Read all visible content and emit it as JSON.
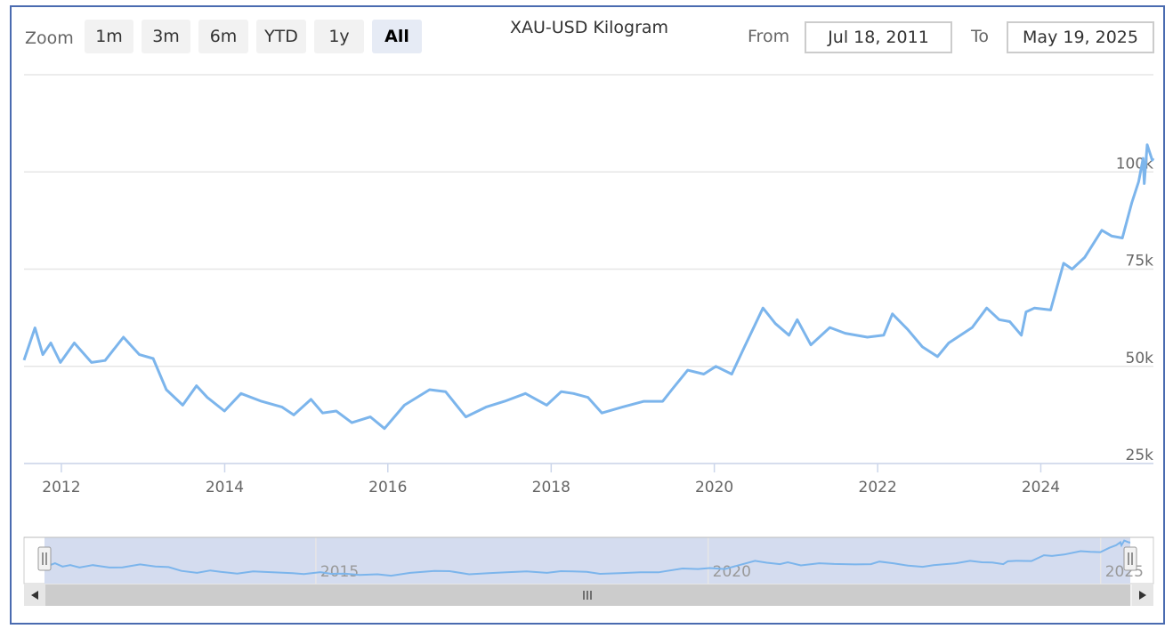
{
  "range_selector": {
    "zoom_label": "Zoom",
    "buttons": [
      {
        "label": "1m",
        "active": false
      },
      {
        "label": "3m",
        "active": false
      },
      {
        "label": "6m",
        "active": false
      },
      {
        "label": "YTD",
        "active": false
      },
      {
        "label": "1y",
        "active": false
      },
      {
        "label": "All",
        "active": true
      }
    ],
    "from_label": "From",
    "from_value": "Jul 18, 2011",
    "to_label": "To",
    "to_value": "May 19, 2025"
  },
  "colors": {
    "series": "#7cb5ec",
    "navigator_mask": "#d4dcef",
    "frame": "#4a6bb0"
  },
  "chart_data": {
    "type": "line",
    "title": "XAU-USD Kilogram",
    "xlabel": "",
    "ylabel": "",
    "x_ticks": [
      "2012",
      "2014",
      "2016",
      "2018",
      "2020",
      "2022",
      "2024"
    ],
    "y_ticks": [
      "25k",
      "50k",
      "75k",
      "100k"
    ],
    "ylim": [
      25000,
      125000
    ],
    "xlim": [
      "2011-07-18",
      "2025-05-19"
    ],
    "grid": true,
    "navigator_ticks": [
      "2015",
      "2020",
      "2025"
    ],
    "series": [
      {
        "x": [
          "2011-07-18",
          "2011-09-05",
          "2011-10-10",
          "2011-11-15",
          "2011-12-28",
          "2012-02-28",
          "2012-05-15",
          "2012-07-15",
          "2012-10-05",
          "2012-12-15",
          "2013-02-15",
          "2013-04-15",
          "2013-06-27",
          "2013-08-28",
          "2013-10-15",
          "2013-12-31",
          "2014-03-15",
          "2014-06-15",
          "2014-09-15",
          "2014-11-06",
          "2015-01-22",
          "2015-03-15",
          "2015-05-15",
          "2015-07-24",
          "2015-10-15",
          "2015-12-17",
          "2016-03-15",
          "2016-07-06",
          "2016-09-15",
          "2016-12-15",
          "2017-03-15",
          "2017-06-06",
          "2017-09-08",
          "2017-12-12",
          "2018-02-15",
          "2018-04-11",
          "2018-06-15",
          "2018-08-16",
          "2018-11-15",
          "2019-02-20",
          "2019-05-15",
          "2019-06-25",
          "2019-09-04",
          "2019-11-15",
          "2020-01-08",
          "2020-03-19",
          "2020-05-15",
          "2020-08-06",
          "2020-09-30",
          "2020-11-30",
          "2021-01-06",
          "2021-03-08",
          "2021-06-01",
          "2021-08-09",
          "2021-11-16",
          "2022-01-28",
          "2022-03-08",
          "2022-05-15",
          "2022-07-20",
          "2022-09-26",
          "2022-11-15",
          "2023-02-28",
          "2023-05-04",
          "2023-06-29",
          "2023-08-15",
          "2023-10-06",
          "2023-10-27",
          "2023-12-04",
          "2024-02-14",
          "2024-04-12",
          "2024-05-20",
          "2024-07-15",
          "2024-09-30",
          "2024-11-14",
          "2024-12-31",
          "2025-02-11",
          "2025-03-14",
          "2025-04-03",
          "2025-04-08",
          "2025-04-21",
          "2025-05-14",
          "2025-05-19"
        ],
        "values": [
          51600,
          59900,
          53000,
          56000,
          51000,
          56000,
          51000,
          51500,
          57500,
          53000,
          52000,
          44000,
          40000,
          45000,
          42000,
          38500,
          43000,
          41000,
          39500,
          37500,
          41500,
          38000,
          38500,
          35500,
          37000,
          34000,
          40000,
          44000,
          43500,
          37000,
          39500,
          41000,
          43000,
          40000,
          43500,
          43000,
          42000,
          38000,
          39500,
          41000,
          41000,
          44000,
          49000,
          48000,
          50000,
          48000,
          55000,
          65000,
          61000,
          58000,
          62000,
          55500,
          60000,
          58500,
          57500,
          58000,
          63500,
          59500,
          55000,
          52500,
          56000,
          60000,
          65000,
          62000,
          61500,
          58000,
          64000,
          65000,
          64500,
          76500,
          75000,
          78000,
          85000,
          83500,
          83000,
          92000,
          97500,
          103500,
          97000,
          107000,
          103000,
          103500
        ]
      }
    ]
  }
}
